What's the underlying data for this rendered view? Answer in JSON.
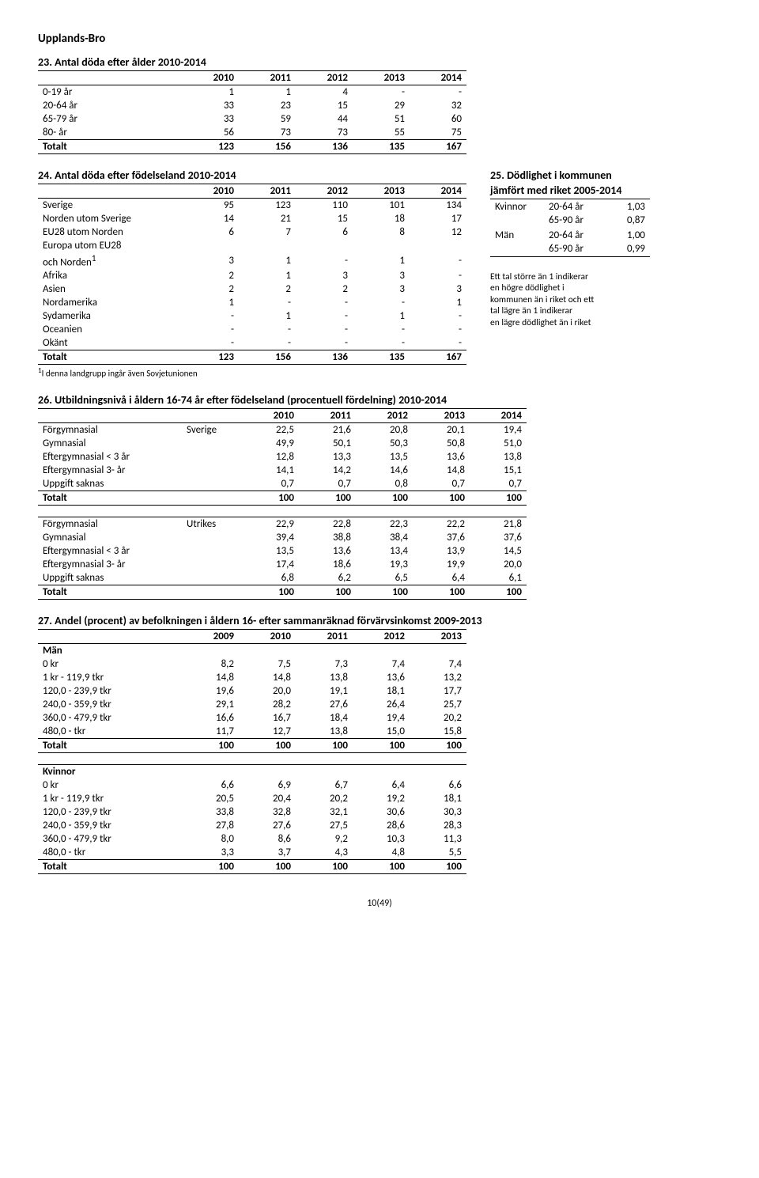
{
  "page_title": "Upplands-Bro",
  "page_number": "10(49)",
  "t23": {
    "title": "23. Antal döda efter ålder 2010-2014",
    "years": [
      "2010",
      "2011",
      "2012",
      "2013",
      "2014"
    ],
    "rows": [
      {
        "label": "0-19 år",
        "v": [
          "1",
          "1",
          "4",
          "-",
          "-"
        ]
      },
      {
        "label": "20-64 år",
        "v": [
          "33",
          "23",
          "15",
          "29",
          "32"
        ]
      },
      {
        "label": "65-79 år",
        "v": [
          "33",
          "59",
          "44",
          "51",
          "60"
        ]
      },
      {
        "label": "80- år",
        "v": [
          "56",
          "73",
          "73",
          "55",
          "75"
        ]
      }
    ],
    "total": {
      "label": "Totalt",
      "v": [
        "123",
        "156",
        "136",
        "135",
        "167"
      ]
    }
  },
  "t24": {
    "title": "24. Antal döda efter födelseland 2010-2014",
    "years": [
      "2010",
      "2011",
      "2012",
      "2013",
      "2014"
    ],
    "rows": [
      {
        "label": "Sverige",
        "v": [
          "95",
          "123",
          "110",
          "101",
          "134"
        ]
      },
      {
        "label": "Norden utom Sverige",
        "v": [
          "14",
          "21",
          "15",
          "18",
          "17"
        ]
      },
      {
        "label": "EU28 utom Norden",
        "v": [
          "6",
          "7",
          "6",
          "8",
          "12"
        ]
      },
      {
        "label": "Europa utom EU28",
        "v": [
          "",
          "",
          "",
          "",
          ""
        ]
      },
      {
        "label": "och Norden",
        "sup": "1",
        "v": [
          "3",
          "1",
          "-",
          "1",
          "-"
        ]
      },
      {
        "label": "Afrika",
        "v": [
          "2",
          "1",
          "3",
          "3",
          "-"
        ]
      },
      {
        "label": "Asien",
        "v": [
          "2",
          "2",
          "2",
          "3",
          "3"
        ]
      },
      {
        "label": "Nordamerika",
        "v": [
          "1",
          "-",
          "-",
          "-",
          "1"
        ]
      },
      {
        "label": "Sydamerika",
        "v": [
          "-",
          "1",
          "-",
          "1",
          "-"
        ]
      },
      {
        "label": "Oceanien",
        "v": [
          "-",
          "-",
          "-",
          "-",
          "-"
        ]
      },
      {
        "label": "Okänt",
        "v": [
          "-",
          "-",
          "-",
          "-",
          "-"
        ]
      }
    ],
    "total": {
      "label": "Totalt",
      "v": [
        "123",
        "156",
        "136",
        "135",
        "167"
      ]
    },
    "footnote": "1I denna landgrupp ingår även Sovjetunionen"
  },
  "t25": {
    "title": "25. Dödlighet i kommunen",
    "subtitle": "jämfört med riket 2005-2014",
    "rows": [
      {
        "g": "Kvinnor",
        "a": "20-64 år",
        "v": "1,03"
      },
      {
        "g": "",
        "a": "65-90 år",
        "v": "0,87"
      },
      {
        "g": "",
        "a": "",
        "v": ""
      },
      {
        "g": "Män",
        "a": "20-64 år",
        "v": "1,00"
      },
      {
        "g": "",
        "a": "65-90 år",
        "v": "0,99"
      }
    ],
    "note_lines": [
      "Ett tal större än 1 indikerar",
      "en högre dödlighet i",
      "kommunen än i riket och ett",
      "tal lägre än 1 indikerar",
      "en lägre dödlighet än i riket"
    ]
  },
  "t26": {
    "title": "26. Utbildningsnivå i åldern 16-74 år efter födelseland (procentuell fördelning) 2010-2014",
    "years": [
      "2010",
      "2011",
      "2012",
      "2013",
      "2014"
    ],
    "block1_group": "Sverige",
    "block2_group": "Utrikes",
    "block1": [
      {
        "label": "Förgymnasial",
        "v": [
          "22,5",
          "21,6",
          "20,8",
          "20,1",
          "19,4"
        ]
      },
      {
        "label": "Gymnasial",
        "v": [
          "49,9",
          "50,1",
          "50,3",
          "50,8",
          "51,0"
        ]
      },
      {
        "label": "Eftergymnasial < 3 år",
        "v": [
          "12,8",
          "13,3",
          "13,5",
          "13,6",
          "13,8"
        ]
      },
      {
        "label": "Eftergymnasial 3- år",
        "v": [
          "14,1",
          "14,2",
          "14,6",
          "14,8",
          "15,1"
        ]
      },
      {
        "label": "Uppgift saknas",
        "v": [
          "0,7",
          "0,7",
          "0,8",
          "0,7",
          "0,7"
        ]
      }
    ],
    "total1": {
      "label": "Totalt",
      "v": [
        "100",
        "100",
        "100",
        "100",
        "100"
      ]
    },
    "block2": [
      {
        "label": "Förgymnasial",
        "v": [
          "22,9",
          "22,8",
          "22,3",
          "22,2",
          "21,8"
        ]
      },
      {
        "label": "Gymnasial",
        "v": [
          "39,4",
          "38,8",
          "38,4",
          "37,6",
          "37,6"
        ]
      },
      {
        "label": "Eftergymnasial < 3 år",
        "v": [
          "13,5",
          "13,6",
          "13,4",
          "13,9",
          "14,5"
        ]
      },
      {
        "label": "Eftergymnasial 3- år",
        "v": [
          "17,4",
          "18,6",
          "19,3",
          "19,9",
          "20,0"
        ]
      },
      {
        "label": "Uppgift saknas",
        "v": [
          "6,8",
          "6,2",
          "6,5",
          "6,4",
          "6,1"
        ]
      }
    ],
    "total2": {
      "label": "Totalt",
      "v": [
        "100",
        "100",
        "100",
        "100",
        "100"
      ]
    }
  },
  "t27": {
    "title": "27. Andel (procent) av befolkningen i åldern 16- efter sammanräknad förvärvsinkomst 2009-2013",
    "years": [
      "2009",
      "2010",
      "2011",
      "2012",
      "2013"
    ],
    "g1_label": "Män",
    "g2_label": "Kvinnor",
    "g1_rows": [
      {
        "label": "0 kr",
        "v": [
          "8,2",
          "7,5",
          "7,3",
          "7,4",
          "7,4"
        ]
      },
      {
        "label": "1 kr - 119,9 tkr",
        "v": [
          "14,8",
          "14,8",
          "13,8",
          "13,6",
          "13,2"
        ]
      },
      {
        "label": "120,0 - 239,9 tkr",
        "v": [
          "19,6",
          "20,0",
          "19,1",
          "18,1",
          "17,7"
        ]
      },
      {
        "label": "240,0 - 359,9 tkr",
        "v": [
          "29,1",
          "28,2",
          "27,6",
          "26,4",
          "25,7"
        ]
      },
      {
        "label": "360,0 - 479,9 tkr",
        "v": [
          "16,6",
          "16,7",
          "18,4",
          "19,4",
          "20,2"
        ]
      },
      {
        "label": "480,0 - tkr",
        "v": [
          "11,7",
          "12,7",
          "13,8",
          "15,0",
          "15,8"
        ]
      }
    ],
    "g1_total": {
      "label": "Totalt",
      "v": [
        "100",
        "100",
        "100",
        "100",
        "100"
      ]
    },
    "g2_rows": [
      {
        "label": "0 kr",
        "v": [
          "6,6",
          "6,9",
          "6,7",
          "6,4",
          "6,6"
        ]
      },
      {
        "label": "1 kr - 119,9 tkr",
        "v": [
          "20,5",
          "20,4",
          "20,2",
          "19,2",
          "18,1"
        ]
      },
      {
        "label": "120,0 - 239,9 tkr",
        "v": [
          "33,8",
          "32,8",
          "32,1",
          "30,6",
          "30,3"
        ]
      },
      {
        "label": "240,0 - 359,9 tkr",
        "v": [
          "27,8",
          "27,6",
          "27,5",
          "28,6",
          "28,3"
        ]
      },
      {
        "label": "360,0 - 479,9 tkr",
        "v": [
          "8,0",
          "8,6",
          "9,2",
          "10,3",
          "11,3"
        ]
      },
      {
        "label": "480,0 - tkr",
        "v": [
          "3,3",
          "3,7",
          "4,3",
          "4,8",
          "5,5"
        ]
      }
    ],
    "g2_total": {
      "label": "Totalt",
      "v": [
        "100",
        "100",
        "100",
        "100",
        "100"
      ]
    }
  },
  "col_widths": {
    "label_col": 170,
    "group_col": 64,
    "num_col": 60,
    "side_g": 56,
    "side_a": 66,
    "side_v": 44
  }
}
